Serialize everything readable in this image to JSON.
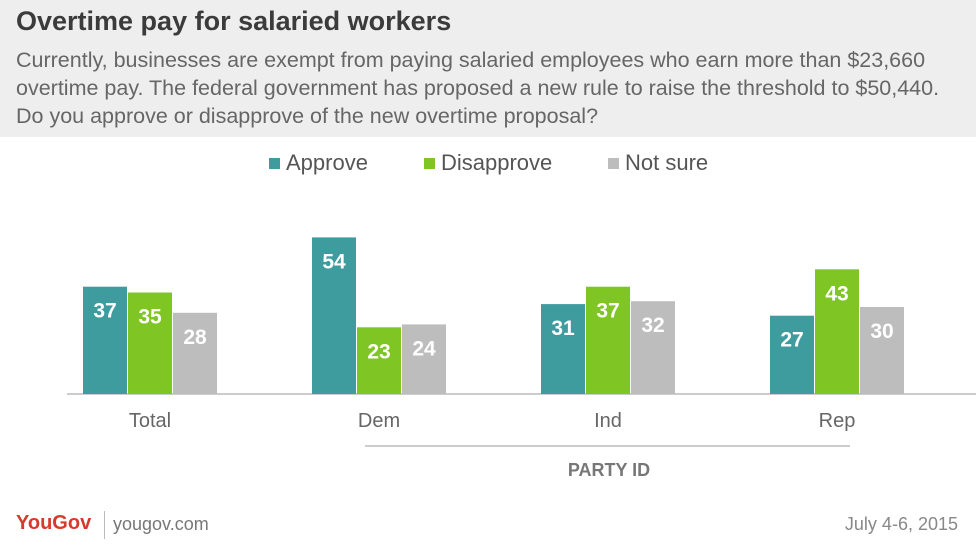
{
  "header": {
    "title": "Overtime pay for salaried workers",
    "subtitle": "Currently, businesses are exempt from paying salaried employees who earn more than $23,660 overtime pay. The federal government has proposed a new rule to raise the threshold to $50,440. Do you approve or disapprove of the new overtime proposal?"
  },
  "legend": {
    "items": [
      {
        "label": "Approve",
        "color": "#3e9c9f"
      },
      {
        "label": "Disapprove",
        "color": "#7fc524"
      },
      {
        "label": "Not sure",
        "color": "#bdbdbd"
      }
    ]
  },
  "footer": {
    "logo": "YouGov",
    "url": "yougov.com",
    "date": "July 4-6, 2015"
  },
  "chart_data": {
    "type": "bar",
    "categories": [
      "Total",
      "Dem",
      "Ind",
      "Rep"
    ],
    "series": [
      {
        "name": "Approve",
        "values": [
          37,
          54,
          31,
          27
        ],
        "color": "#3e9c9f"
      },
      {
        "name": "Disapprove",
        "values": [
          35,
          23,
          37,
          43
        ],
        "color": "#7fc524"
      },
      {
        "name": "Not sure",
        "values": [
          28,
          24,
          32,
          30
        ],
        "color": "#bdbdbd"
      }
    ],
    "group_label": "PARTY ID",
    "grouped_categories": [
      "Dem",
      "Ind",
      "Rep"
    ],
    "ylim": [
      0,
      60
    ],
    "grid": false,
    "legend_position": "top-center"
  }
}
